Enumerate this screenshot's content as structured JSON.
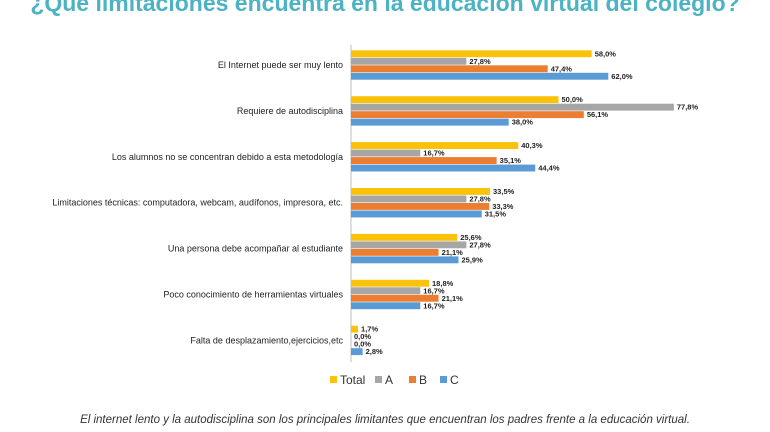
{
  "title": "¿Qué limitaciones encuentra en la educación virtual del colegio?",
  "caption": "El internet lento y la autodisciplina son los principales limitantes que encuentran los padres frente a la educación virtual.",
  "colors": {
    "title": "#4bb3c4",
    "Total": "#fbc20a",
    "A": "#a6a6a6",
    "B": "#ed7d31",
    "C": "#5b9bd5"
  },
  "chart_data": {
    "type": "bar",
    "orientation": "horizontal",
    "value_format": "percent-1-decimal-comma",
    "categories": [
      "El Internet puede ser muy lento",
      "Requiere de autodisciplina",
      "Los alumnos no se concentran debido a esta metodología",
      "Limitaciones técnicas: computadora, webcam, audífonos, impresora, etc.",
      "Una persona debe acompañar al estudiante",
      "Poco conocimiento de herramientas virtuales",
      "Falta de desplazamiento,ejercicios,etc"
    ],
    "series": [
      {
        "name": "Total",
        "values": [
          58.0,
          50.0,
          40.3,
          33.5,
          25.6,
          18.8,
          1.7
        ]
      },
      {
        "name": "A",
        "values": [
          27.8,
          77.8,
          16.7,
          27.8,
          27.8,
          16.7,
          0.0
        ]
      },
      {
        "name": "B",
        "values": [
          47.4,
          56.1,
          35.1,
          33.3,
          21.1,
          21.1,
          0.0
        ]
      },
      {
        "name": "C",
        "values": [
          62.0,
          38.0,
          44.4,
          31.5,
          25.9,
          16.7,
          2.8
        ]
      }
    ],
    "legend_position": "bottom",
    "grid": false
  }
}
